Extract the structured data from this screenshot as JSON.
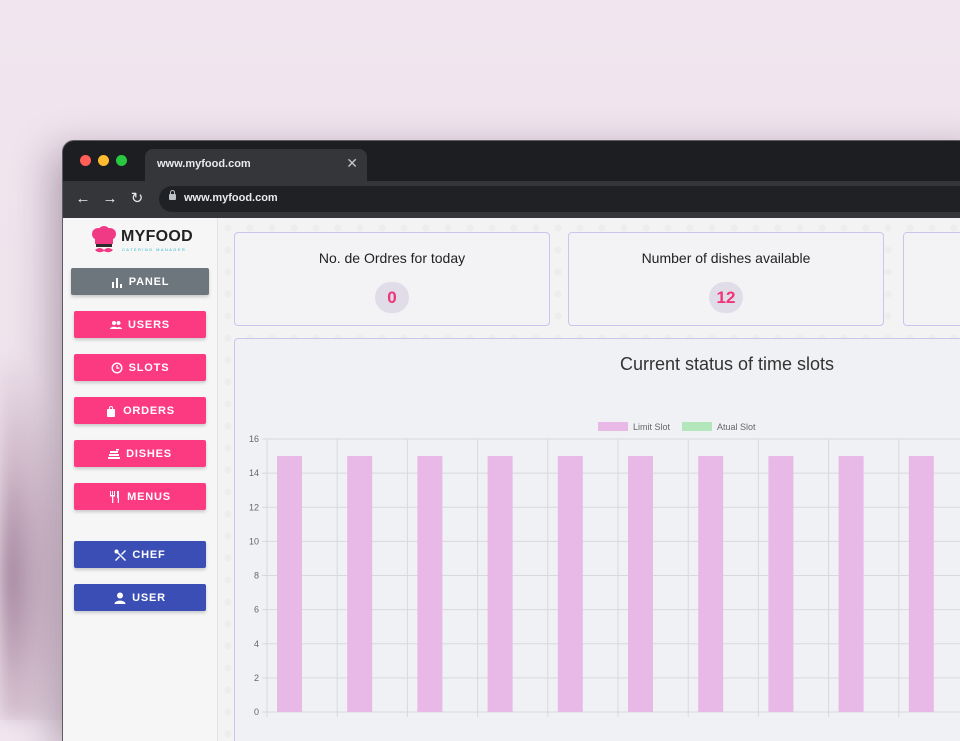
{
  "browser": {
    "tab_title": "www.myfood.com",
    "tab_close": "✕",
    "url": "www.myfood.com",
    "nav": {
      "back": "←",
      "forward": "→",
      "reload": "↻"
    }
  },
  "logo": {
    "name": "MYFOOD",
    "tagline": "CATERING MANAGER"
  },
  "sidebar": {
    "items": [
      {
        "label": "PANEL",
        "icon": "bar-chart-icon",
        "color": "#6d757d"
      },
      {
        "label": "USERS",
        "icon": "users-icon",
        "color": "#fb3a82"
      },
      {
        "label": "SLOTS",
        "icon": "clock-icon",
        "color": "#fb3a82"
      },
      {
        "label": "ORDERS",
        "icon": "shopping-bag-icon",
        "color": "#fb3a82"
      },
      {
        "label": "DISHES",
        "icon": "dish-stack-icon",
        "color": "#fb3a82"
      },
      {
        "label": "MENUS",
        "icon": "cutlery-icon",
        "color": "#fb3a82"
      },
      {
        "label": "CHEF",
        "icon": "crossed-utensils-icon",
        "color": "#3a4eb5"
      },
      {
        "label": "USER",
        "icon": "person-icon",
        "color": "#3a4eb5"
      }
    ]
  },
  "cards": [
    {
      "title": "No. de Ordres for today",
      "value": "0"
    },
    {
      "title": "Number of dishes available",
      "value": "12"
    }
  ],
  "chart_data": {
    "type": "bar",
    "title": "Current status of time slots",
    "legend_position": "top",
    "ylim": [
      0,
      16
    ],
    "yticks": [
      0,
      2,
      4,
      6,
      8,
      10,
      12,
      14,
      16
    ],
    "grid": true,
    "categories": [
      "",
      "",
      "",
      "",
      "",
      "",
      "",
      "",
      "",
      ""
    ],
    "series": [
      {
        "name": "Limit Slot",
        "color": "#e8b8e6",
        "values": [
          15,
          15,
          15,
          15,
          15,
          15,
          15,
          15,
          15,
          15
        ]
      },
      {
        "name": "Atual Slot",
        "color": "#b4e6bc",
        "values": [
          0,
          0,
          0,
          0,
          0,
          0,
          0,
          0,
          0,
          0
        ]
      }
    ]
  },
  "colors": {
    "accent_pink": "#fb3a82",
    "accent_blue": "#3a4eb5",
    "panel_gray": "#6d757d",
    "badge_text": "#f0337a"
  }
}
